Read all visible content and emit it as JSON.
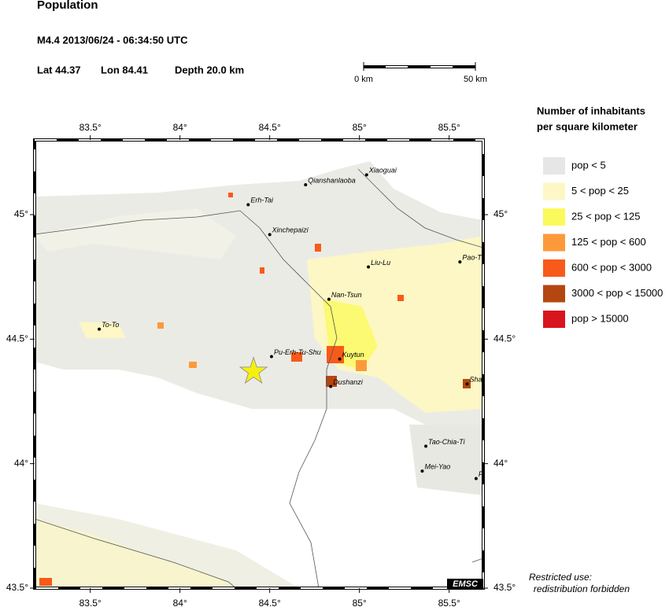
{
  "header": {
    "title": "Population",
    "event": "M4.4  2013/06/24 - 06:34:50 UTC",
    "lat": "Lat 44.37",
    "lon": "Lon  84.41",
    "depth": "Depth  20.0 km"
  },
  "scale_bar": {
    "start": "0 km",
    "end": "50 km"
  },
  "map": {
    "xlim": [
      83.19,
      85.69
    ],
    "ylim": [
      43.5,
      45.3
    ],
    "xticks": [
      {
        "value": 83.5,
        "label": "83.5°"
      },
      {
        "value": 84,
        "label": "84°"
      },
      {
        "value": 84.5,
        "label": "84.5°"
      },
      {
        "value": 85,
        "label": "85°"
      },
      {
        "value": 85.5,
        "label": "85.5°"
      }
    ],
    "yticks": [
      {
        "value": 45,
        "label": "45°"
      },
      {
        "value": 44.5,
        "label": "44.5°"
      },
      {
        "value": 44,
        "label": "44°"
      },
      {
        "value": 43.5,
        "label": "43.5°"
      }
    ],
    "epicenter": {
      "lon": 84.41,
      "lat": 44.37
    },
    "cities": [
      {
        "name": "Xiaoguai",
        "lon": 85.04,
        "lat": 45.16
      },
      {
        "name": "Qianshanlaoba",
        "lon": 84.7,
        "lat": 45.12
      },
      {
        "name": "Erh-Tai",
        "lon": 84.38,
        "lat": 45.04
      },
      {
        "name": "Xinchepaizi",
        "lon": 84.5,
        "lat": 44.92
      },
      {
        "name": "Liu-Lu",
        "lon": 85.05,
        "lat": 44.79
      },
      {
        "name": "Pao-T",
        "lon": 85.56,
        "lat": 44.81
      },
      {
        "name": "Nan-Tsun",
        "lon": 84.83,
        "lat": 44.66
      },
      {
        "name": "To-To",
        "lon": 83.55,
        "lat": 44.54
      },
      {
        "name": "Pu-Erh-Tu-Shu",
        "lon": 84.51,
        "lat": 44.43
      },
      {
        "name": "Kuytun",
        "lon": 84.89,
        "lat": 44.42
      },
      {
        "name": "Dushanzi",
        "lon": 84.84,
        "lat": 44.31
      },
      {
        "name": "Sha",
        "lon": 85.6,
        "lat": 44.32
      },
      {
        "name": "Tao-Chia-Ti",
        "lon": 85.37,
        "lat": 44.07
      },
      {
        "name": "Mei-Yao",
        "lon": 85.35,
        "lat": 43.97
      },
      {
        "name": "F",
        "lon": 85.65,
        "lat": 43.94
      }
    ]
  },
  "legend": {
    "title_lines": [
      "Number of inhabitants",
      "per square kilometer"
    ],
    "items": [
      {
        "label": "pop < 5",
        "color": "#e6e6e6"
      },
      {
        "label": "5 < pop < 25",
        "color": "#fcf7c5"
      },
      {
        "label": "25 < pop < 125",
        "color": "#fafa5c"
      },
      {
        "label": "125 < pop < 600",
        "color": "#fc9a3a"
      },
      {
        "label": "600 < pop < 3000",
        "color": "#f85a1a"
      },
      {
        "label": "3000 < pop < 15000",
        "color": "#b4470f"
      },
      {
        "label": "pop > 15000",
        "color": "#d8141c"
      }
    ]
  },
  "footer": {
    "notice_lines": [
      "Restricted use:",
      "redistribution forbidden"
    ],
    "logo": "EMSC"
  }
}
